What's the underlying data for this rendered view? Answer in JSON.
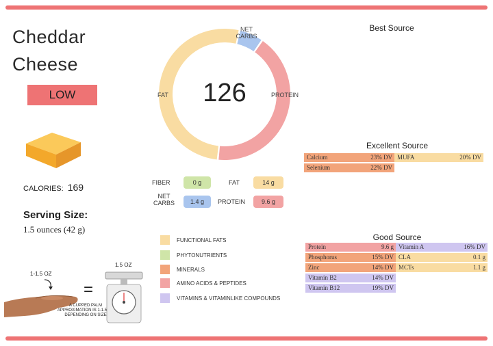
{
  "food": {
    "name_line1": "Cheddar",
    "name_line2": "Cheese",
    "rating": "LOW",
    "calories_label": "CALORIES:",
    "calories_value": "169",
    "serving_title": "Serving Size:",
    "serving_value": "1.5 ounces (42 g)"
  },
  "donut": {
    "center_value": "126",
    "segments": [
      {
        "label": "FAT",
        "fraction": 0.52,
        "color": "#f9dca2"
      },
      {
        "label": "NET CARBS",
        "fraction": 0.06,
        "color": "#a9c5ee"
      },
      {
        "label": "PROTEIN",
        "fraction": 0.42,
        "color": "#f2a3a3"
      }
    ],
    "fat_label": "FAT",
    "carbs_label_1": "NET",
    "carbs_label_2": "CARBS",
    "protein_label": "PROTEIN"
  },
  "macros": {
    "fiber_label": "FIBER",
    "fiber_value": "0 g",
    "fat_label": "FAT",
    "fat_value": "14 g",
    "carbs_label_1": "NET",
    "carbs_label_2": "CARBS",
    "carbs_value": "1.4 g",
    "protein_label": "PROTEIN",
    "protein_value": "9.6 g"
  },
  "legend": [
    {
      "label": "FUNCTIONAL FATS",
      "color": "#f9dca2"
    },
    {
      "label": "PHYTONUTRIENTS",
      "color": "#cfe5a8"
    },
    {
      "label": "MINERALS",
      "color": "#f2a47a"
    },
    {
      "label": "AMINO ACIDS & PEPTIDES",
      "color": "#f2a3a3"
    },
    {
      "label": "VITAMINS & VITAMINLIKE COMPOUNDS",
      "color": "#cfc6f0"
    }
  ],
  "best_source": {
    "title": "Best Source"
  },
  "excellent_source": {
    "title": "Excellent Source",
    "items": [
      {
        "name": "Calcium",
        "value": "23% DV",
        "color": "#f2a47a"
      },
      {
        "name": "MUFA",
        "value": "20% DV",
        "color": "#f9dca2"
      },
      {
        "name": "Selenium",
        "value": "22% DV",
        "color": "#f2a47a"
      }
    ]
  },
  "good_source": {
    "title": "Good Source",
    "items": [
      {
        "name": "Protein",
        "value": "9.6 g",
        "color": "#f2a3a3"
      },
      {
        "name": "Vitamin A",
        "value": "16% DV",
        "color": "#cfc6f0"
      },
      {
        "name": "Phosphorus",
        "value": "15% DV",
        "color": "#f2a47a"
      },
      {
        "name": "CLA",
        "value": "0.1 g",
        "color": "#f9dca2"
      },
      {
        "name": "Zinc",
        "value": "14% DV",
        "color": "#f2a47a"
      },
      {
        "name": "MCTs",
        "value": "1.1 g",
        "color": "#f9dca2"
      },
      {
        "name": "Vitamin B2",
        "value": "14% DV",
        "color": "#cfc6f0"
      },
      {
        "name": "Vitamin B12",
        "value": "19% DV",
        "color": "#cfc6f0"
      }
    ]
  },
  "portion": {
    "hand_label": "1-1.5 OZ",
    "scale_label": "1.5 OZ",
    "equals": "=",
    "caption": "A CUPPED PALM APPROXIMATION IS 1-1.5 OZ DEPENDING ON SIZE"
  }
}
